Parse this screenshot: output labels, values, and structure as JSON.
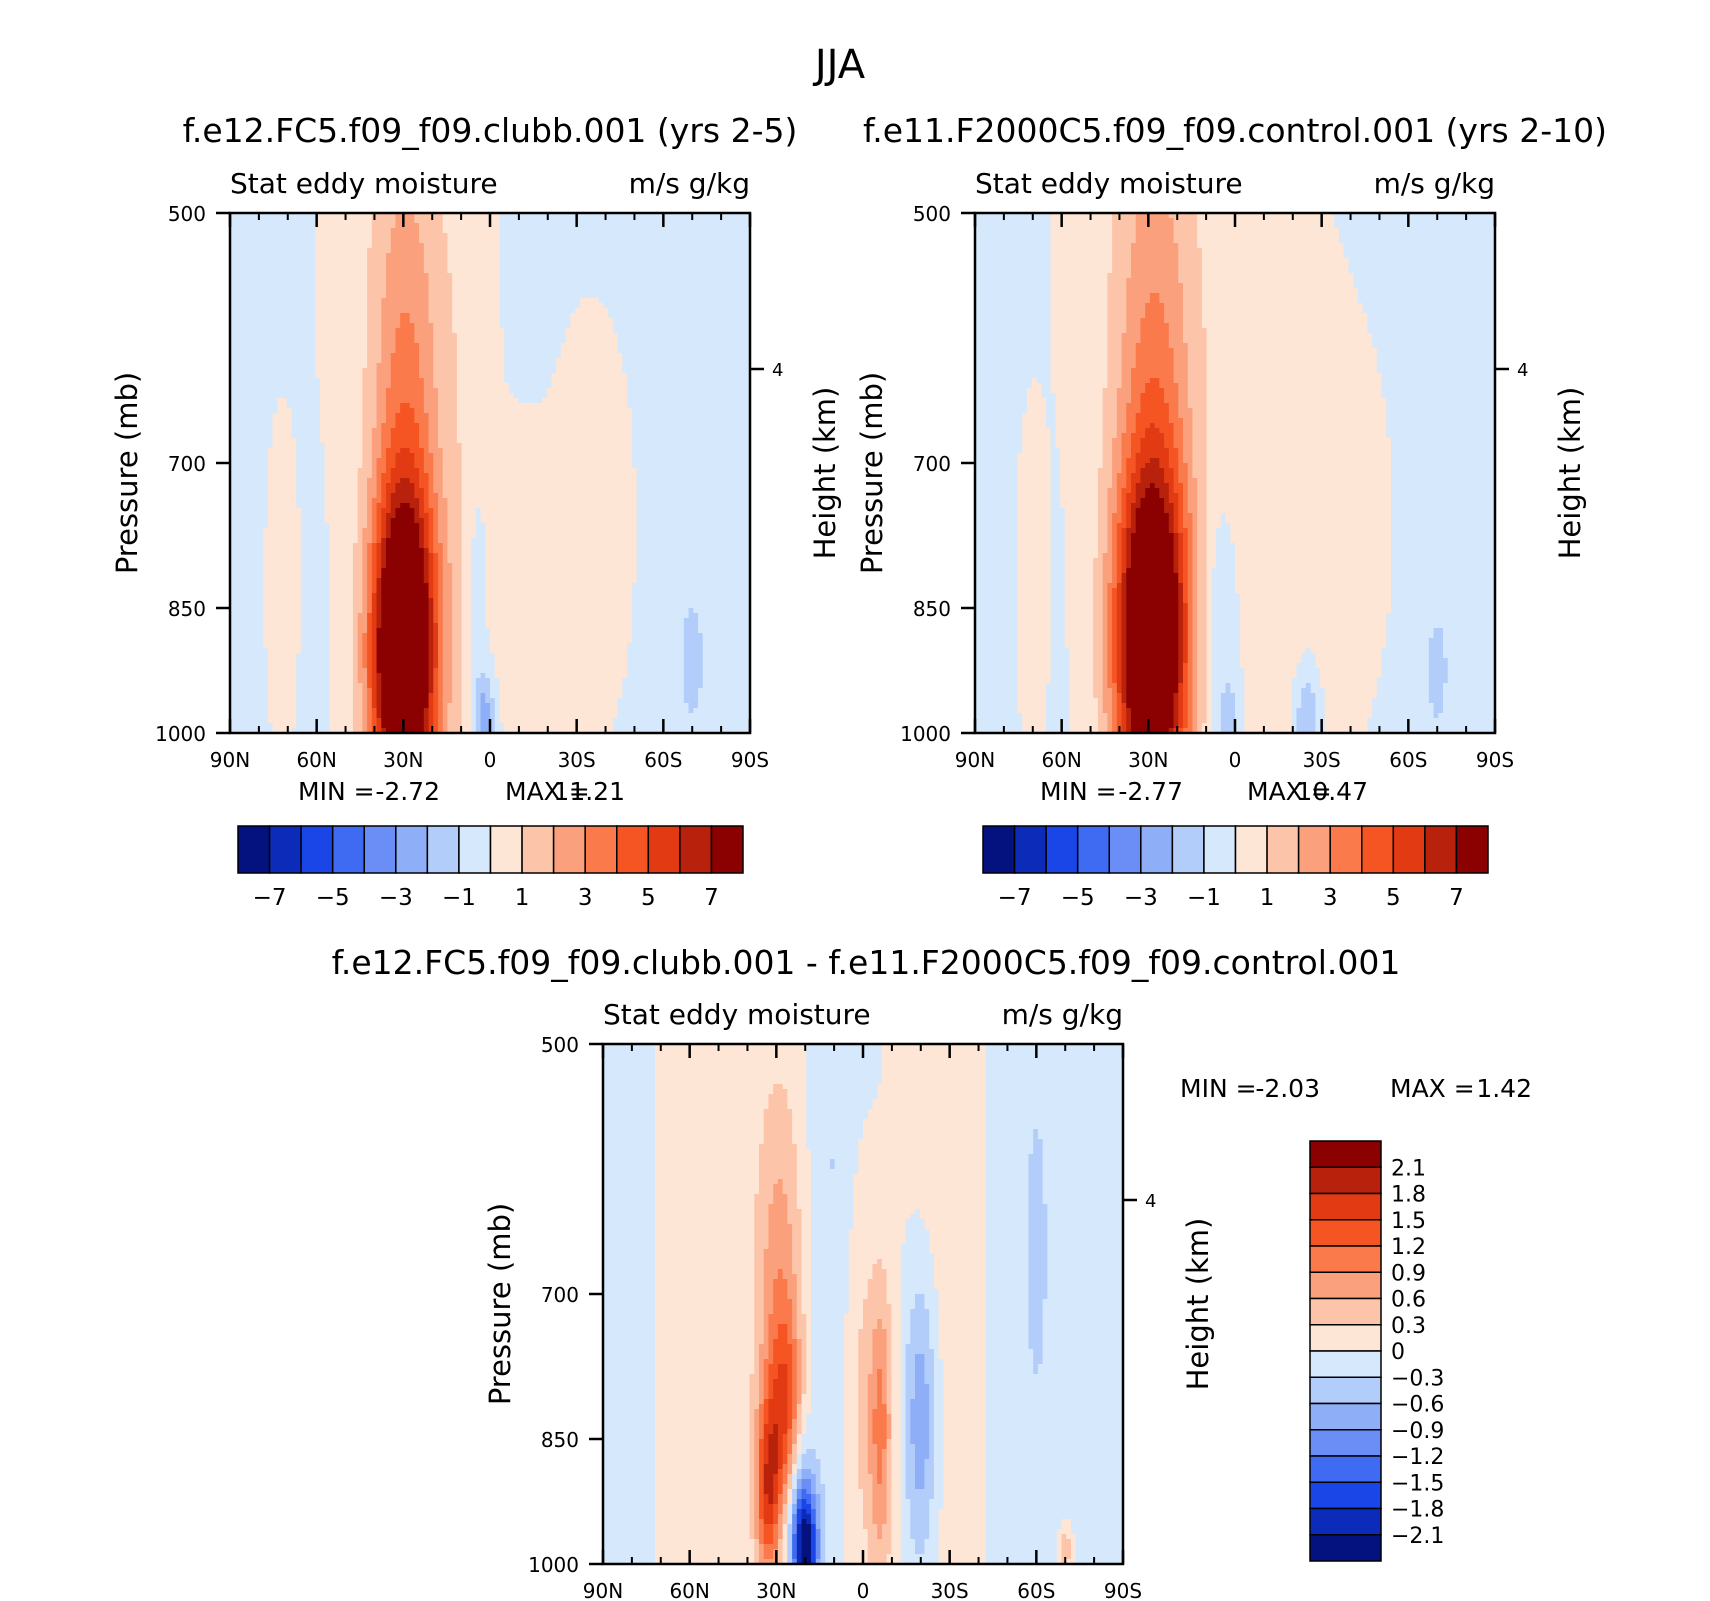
{
  "figure_title": "JJA",
  "colors": {
    "positive": [
      "#fde6d5",
      "#fcc5aa",
      "#fba07c",
      "#fa7a4c",
      "#f55423",
      "#e23a12",
      "#b8220c",
      "#8b0000"
    ],
    "negative": [
      "#d6e8fb",
      "#b3cdfa",
      "#8eaff7",
      "#6a8ef5",
      "#3f6bf3",
      "#1a46e8",
      "#0c2bb8",
      "#03127f"
    ]
  },
  "chart_data": [
    {
      "type": "heatmap",
      "id": "panel-clubb",
      "title": "f.e12.FC5.f09_f09.clubb.001 (yrs 2-5)",
      "subtitle_left": "Stat eddy moisture",
      "subtitle_right": "m/s g/kg",
      "ylabel": "Pressure (mb)",
      "ylabel_right": "Height (km)",
      "x_ticks": [
        "90N",
        "60N",
        "30N",
        "0",
        "30S",
        "60S",
        "90S"
      ],
      "y_ticks": [
        "500",
        "700",
        "850",
        "1000"
      ],
      "y_right_ticks": [
        "4"
      ],
      "xlim": [
        90,
        -90
      ],
      "ylim": [
        1000,
        500
      ],
      "min_label": "MIN =",
      "min_value": "-2.72",
      "max_label": "MAX =",
      "max_value": "11.21",
      "colorbar_levels": [
        -7,
        -6,
        -5,
        -4,
        -3,
        -2,
        -1,
        0,
        1,
        2,
        3,
        4,
        5,
        6,
        7
      ],
      "colorbar_labels": [
        "-7",
        "-5",
        "-3",
        "-1",
        "1",
        "3",
        "5",
        "7"
      ],
      "features": [
        {
          "lat": 30,
          "p": 930,
          "amp": 11.2,
          "wlat": 8,
          "wp": 110
        },
        {
          "lat": 29,
          "p": 720,
          "amp": 2.6,
          "wlat": 8,
          "wp": 190
        },
        {
          "lat": 30,
          "p": 560,
          "amp": 0.9,
          "wlat": 14,
          "wp": 160
        },
        {
          "lat": 10,
          "p": 850,
          "amp": 0.7,
          "wlat": 6,
          "wp": 260
        },
        {
          "lat": -35,
          "p": 800,
          "amp": 0.9,
          "wlat": 7,
          "wp": 100
        },
        {
          "lat": -12,
          "p": 870,
          "amp": 0.6,
          "wlat": 10,
          "wp": 90
        },
        {
          "lat": 72,
          "p": 860,
          "amp": 0.6,
          "wlat": 3,
          "wp": 90
        },
        {
          "lat": 2,
          "p": 990,
          "amp": -2.7,
          "wlat": 2.5,
          "wp": 35
        },
        {
          "lat": 5,
          "p": 870,
          "amp": -0.9,
          "wlat": 3,
          "wp": 90
        },
        {
          "lat": -70,
          "p": 930,
          "amp": -1.3,
          "wlat": 4,
          "wp": 60
        }
      ]
    },
    {
      "type": "heatmap",
      "id": "panel-control",
      "title": "f.e11.F2000C5.f09_f09.control.001 (yrs 2-10)",
      "subtitle_left": "Stat eddy moisture",
      "subtitle_right": "m/s g/kg",
      "ylabel": "Pressure (mb)",
      "ylabel_right": "Height (km)",
      "x_ticks": [
        "90N",
        "60N",
        "30N",
        "0",
        "30S",
        "60S",
        "90S"
      ],
      "y_ticks": [
        "500",
        "700",
        "850",
        "1000"
      ],
      "y_right_ticks": [
        "4"
      ],
      "xlim": [
        90,
        -90
      ],
      "ylim": [
        1000,
        500
      ],
      "min_label": "MIN =",
      "min_value": "-2.77",
      "max_label": "MAX =",
      "max_value": "10.47",
      "colorbar_levels": [
        -7,
        -6,
        -5,
        -4,
        -3,
        -2,
        -1,
        0,
        1,
        2,
        3,
        4,
        5,
        6,
        7
      ],
      "colorbar_labels": [
        "-7",
        "-5",
        "-3",
        "-1",
        "1",
        "3",
        "5",
        "7"
      ],
      "features": [
        {
          "lat": 29,
          "p": 920,
          "amp": 10.5,
          "wlat": 9,
          "wp": 120
        },
        {
          "lat": 28,
          "p": 700,
          "amp": 2.3,
          "wlat": 9,
          "wp": 200
        },
        {
          "lat": 28,
          "p": 560,
          "amp": 1.0,
          "wlat": 16,
          "wp": 170
        },
        {
          "lat": -10,
          "p": 780,
          "amp": 0.8,
          "wlat": 14,
          "wp": 200
        },
        {
          "lat": -35,
          "p": 800,
          "amp": 0.8,
          "wlat": 9,
          "wp": 100
        },
        {
          "lat": 70,
          "p": 860,
          "amp": 0.6,
          "wlat": 3,
          "wp": 90
        },
        {
          "lat": 2,
          "p": 990,
          "amp": -1.3,
          "wlat": 3,
          "wp": 35
        },
        {
          "lat": -25,
          "p": 990,
          "amp": -2.2,
          "wlat": 3,
          "wp": 40
        },
        {
          "lat": 5,
          "p": 880,
          "amp": -1.2,
          "wlat": 5,
          "wp": 90
        },
        {
          "lat": -70,
          "p": 940,
          "amp": -1.2,
          "wlat": 4,
          "wp": 60
        }
      ]
    },
    {
      "type": "heatmap",
      "id": "panel-diff",
      "title": "f.e12.FC5.f09_f09.clubb.001 - f.e11.F2000C5.f09_f09.control.001",
      "subtitle_left": "Stat eddy moisture",
      "subtitle_right": "m/s g/kg",
      "ylabel": "Pressure (mb)",
      "ylabel_right": "Height (km)",
      "x_ticks": [
        "90N",
        "60N",
        "30N",
        "0",
        "30S",
        "60S",
        "90S"
      ],
      "y_ticks": [
        "500",
        "700",
        "850",
        "1000"
      ],
      "y_right_ticks": [
        "4"
      ],
      "xlim": [
        90,
        -90
      ],
      "ylim": [
        1000,
        500
      ],
      "min_label": "MIN =",
      "min_value": "-2.03",
      "max_label": "MAX =",
      "max_value": "1.42",
      "colorbar_levels": [
        -2.1,
        -1.8,
        -1.5,
        -1.2,
        -0.9,
        -0.6,
        -0.3,
        0,
        0.3,
        0.6,
        0.9,
        1.2,
        1.5,
        1.8,
        2.1
      ],
      "colorbar_labels": [
        "2.1",
        "1.8",
        "1.5",
        "1.2",
        "0.9",
        "0.6",
        "0.3",
        "0",
        "-0.3",
        "-0.6",
        "-0.9",
        "-1.2",
        "-1.5",
        "-1.8",
        "-2.1"
      ],
      "features": [
        {
          "lat": 33,
          "p": 930,
          "amp": 1.4,
          "wlat": 3,
          "wp": 60
        },
        {
          "lat": 27,
          "p": 860,
          "amp": 1.1,
          "wlat": 4,
          "wp": 70
        },
        {
          "lat": 29,
          "p": 740,
          "amp": 0.8,
          "wlat": 6,
          "wp": 150
        },
        {
          "lat": -6,
          "p": 870,
          "amp": 1.0,
          "wlat": 3,
          "wp": 100
        },
        {
          "lat": 2,
          "p": 830,
          "amp": 0.4,
          "wlat": 4,
          "wp": 150
        },
        {
          "lat": 55,
          "p": 740,
          "amp": 0.25,
          "wlat": 10,
          "wp": 300
        },
        {
          "lat": -27,
          "p": 700,
          "amp": 0.2,
          "wlat": 10,
          "wp": 350
        },
        {
          "lat": -70,
          "p": 985,
          "amp": 0.7,
          "wlat": 1.5,
          "wp": 15
        },
        {
          "lat": 20,
          "p": 985,
          "amp": -2.0,
          "wlat": 3,
          "wp": 40
        },
        {
          "lat": 22,
          "p": 950,
          "amp": -0.8,
          "wlat": 4,
          "wp": 60
        },
        {
          "lat": -20,
          "p": 860,
          "amp": -0.9,
          "wlat": 4,
          "wp": 100
        },
        {
          "lat": 10,
          "p": 650,
          "amp": -0.3,
          "wlat": 6,
          "wp": 250
        },
        {
          "lat": -60,
          "p": 700,
          "amp": -0.3,
          "wlat": 8,
          "wp": 300
        },
        {
          "lat": 82,
          "p": 700,
          "amp": -0.15,
          "wlat": 6,
          "wp": 300
        }
      ]
    }
  ]
}
